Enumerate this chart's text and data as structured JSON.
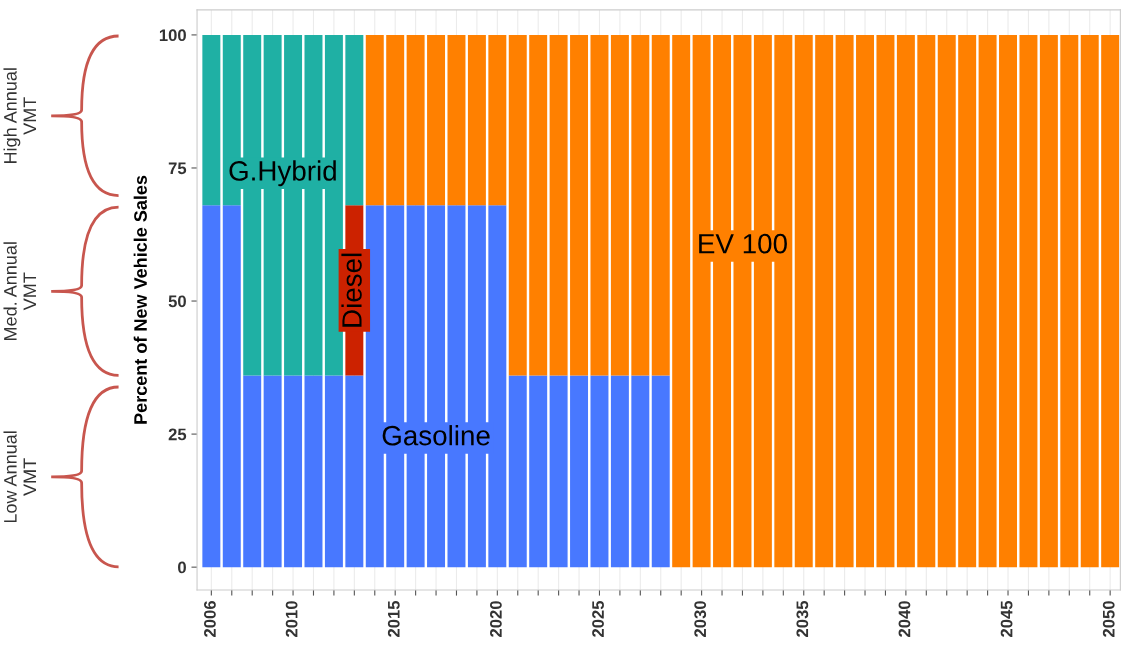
{
  "chart_data": {
    "type": "bar",
    "stacked": true,
    "ylabel": "Percent of New Vehicle Sales",
    "x": [
      2006,
      2007,
      2008,
      2009,
      2010,
      2011,
      2012,
      2013,
      2014,
      2015,
      2016,
      2017,
      2018,
      2019,
      2020,
      2021,
      2022,
      2023,
      2024,
      2025,
      2026,
      2027,
      2028,
      2029,
      2030,
      2031,
      2032,
      2033,
      2034,
      2035,
      2036,
      2037,
      2038,
      2039,
      2040,
      2041,
      2042,
      2043,
      2044,
      2045,
      2046,
      2047,
      2048,
      2049,
      2050
    ],
    "series": [
      {
        "name": "Gasoline",
        "color": "#4878ff",
        "values": [
          68,
          68,
          36,
          36,
          36,
          36,
          36,
          36,
          68,
          68,
          68,
          68,
          68,
          68,
          68,
          36,
          36,
          36,
          36,
          36,
          36,
          36,
          36,
          0,
          0,
          0,
          0,
          0,
          0,
          0,
          0,
          0,
          0,
          0,
          0,
          0,
          0,
          0,
          0,
          0,
          0,
          0,
          0,
          0,
          0
        ]
      },
      {
        "name": "Diesel",
        "color": "#cc2200",
        "values": [
          0,
          0,
          0,
          0,
          0,
          0,
          0,
          32,
          0,
          0,
          0,
          0,
          0,
          0,
          0,
          0,
          0,
          0,
          0,
          0,
          0,
          0,
          0,
          0,
          0,
          0,
          0,
          0,
          0,
          0,
          0,
          0,
          0,
          0,
          0,
          0,
          0,
          0,
          0,
          0,
          0,
          0,
          0,
          0,
          0
        ]
      },
      {
        "name": "G.Hybrid",
        "color": "#1fb0a4",
        "values": [
          32,
          32,
          64,
          64,
          64,
          64,
          64,
          32,
          0,
          0,
          0,
          0,
          0,
          0,
          0,
          0,
          0,
          0,
          0,
          0,
          0,
          0,
          0,
          0,
          0,
          0,
          0,
          0,
          0,
          0,
          0,
          0,
          0,
          0,
          0,
          0,
          0,
          0,
          0,
          0,
          0,
          0,
          0,
          0,
          0
        ]
      },
      {
        "name": "EV 100",
        "color": "#ff8000",
        "values": [
          0,
          0,
          0,
          0,
          0,
          0,
          0,
          0,
          32,
          32,
          32,
          32,
          32,
          32,
          32,
          64,
          64,
          64,
          64,
          64,
          64,
          64,
          64,
          100,
          100,
          100,
          100,
          100,
          100,
          100,
          100,
          100,
          100,
          100,
          100,
          100,
          100,
          100,
          100,
          100,
          100,
          100,
          100,
          100,
          100
        ]
      }
    ],
    "xlim": [
      2005.3,
      2050.5
    ],
    "ylim": [
      -4.3,
      104.7
    ],
    "xticks": [
      2006,
      {
        "value": 2007,
        "label": null
      },
      {
        "value": 2008,
        "label": null
      },
      {
        "value": 2009,
        "label": null
      },
      2010,
      {
        "value": 2011,
        "label": null
      },
      {
        "value": 2012,
        "label": null
      },
      {
        "value": 2013,
        "label": null
      },
      {
        "value": 2014,
        "label": null
      },
      2015,
      {
        "value": 2016,
        "label": null
      },
      {
        "value": 2017,
        "label": null
      },
      {
        "value": 2018,
        "label": null
      },
      {
        "value": 2019,
        "label": null
      },
      2020,
      {
        "value": 2021,
        "label": null
      },
      {
        "value": 2022,
        "label": null
      },
      {
        "value": 2023,
        "label": null
      },
      {
        "value": 2024,
        "label": null
      },
      2025,
      {
        "value": 2026,
        "label": null
      },
      {
        "value": 2027,
        "label": null
      },
      {
        "value": 2028,
        "label": null
      },
      {
        "value": 2029,
        "label": null
      },
      2030,
      {
        "value": 2031,
        "label": null
      },
      {
        "value": 2032,
        "label": null
      },
      {
        "value": 2033,
        "label": null
      },
      {
        "value": 2034,
        "label": null
      },
      2035,
      {
        "value": 2036,
        "label": null
      },
      {
        "value": 2037,
        "label": null
      },
      {
        "value": 2038,
        "label": null
      },
      {
        "value": 2039,
        "label": null
      },
      2040,
      {
        "value": 2041,
        "label": null
      },
      {
        "value": 2042,
        "label": null
      },
      {
        "value": 2043,
        "label": null
      },
      {
        "value": 2044,
        "label": null
      },
      2045,
      {
        "value": 2046,
        "label": null
      },
      {
        "value": 2047,
        "label": null
      },
      {
        "value": 2048,
        "label": null
      },
      {
        "value": 2049,
        "label": null
      },
      2050
    ],
    "yticks": [
      0,
      25,
      50,
      75,
      100
    ],
    "grid": "x",
    "annotations": [
      "High Annual\nVMT",
      "Med. Annual\nVMT",
      "Low Annual\nVMT"
    ]
  }
}
